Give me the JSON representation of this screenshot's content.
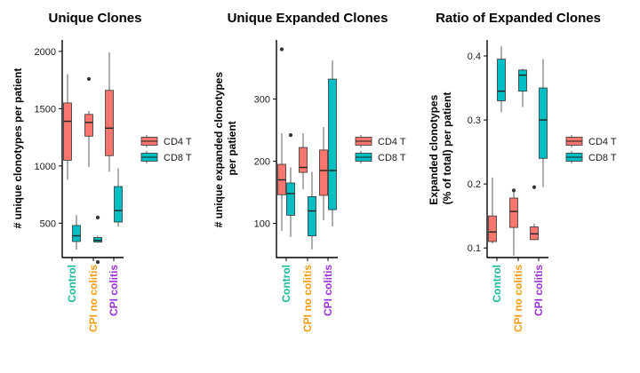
{
  "colors": {
    "cd4": "#F8766D",
    "cd8": "#00BFC4",
    "control": "#1ABC9C",
    "no_colitis": "#F39C12",
    "colitis": "#9B30D9"
  },
  "chart_data": [
    {
      "type": "boxplot",
      "title": "Unique Clones",
      "ylabel": "# unique clonotypes per patient",
      "ylim": [
        200,
        2100
      ],
      "yticks": [
        500,
        1000,
        1500,
        2000
      ],
      "categories": [
        "Control",
        "CPI no colitis",
        "CPI colitis"
      ],
      "legend": [
        "CD4 T",
        "CD8 T"
      ],
      "series": [
        {
          "name": "CD4 T",
          "boxes": [
            {
              "whislo": 880,
              "q1": 1050,
              "med": 1390,
              "q3": 1550,
              "whishi": 1800,
              "outliers": []
            },
            {
              "whislo": 990,
              "q1": 1260,
              "med": 1380,
              "q3": 1450,
              "whishi": 1480,
              "outliers": [
                1760
              ]
            },
            {
              "whislo": 950,
              "q1": 1090,
              "med": 1330,
              "q3": 1660,
              "whishi": 1990,
              "outliers": []
            }
          ]
        },
        {
          "name": "CD8 T",
          "boxes": [
            {
              "whislo": 270,
              "q1": 340,
              "med": 390,
              "q3": 480,
              "whishi": 570,
              "outliers": []
            },
            {
              "whislo": 330,
              "q1": 335,
              "med": 350,
              "q3": 375,
              "whishi": 390,
              "outliers": [
                550,
                160
              ]
            },
            {
              "whislo": 470,
              "q1": 510,
              "med": 610,
              "q3": 820,
              "whishi": 980,
              "outliers": []
            }
          ]
        }
      ]
    },
    {
      "type": "boxplot",
      "title": "Unique Expanded Clones",
      "ylabel": "# unique expanded clonotypes per patient",
      "ylabel_lines": [
        "# unique expanded clonotypes",
        "per patient"
      ],
      "ylim": [
        45,
        395
      ],
      "yticks": [
        100,
        200,
        300
      ],
      "categories": [
        "Control",
        "CPI no colitis",
        "CPI colitis"
      ],
      "legend": [
        "CD4 T",
        "CD8 T"
      ],
      "series": [
        {
          "name": "CD4 T",
          "boxes": [
            {
              "whislo": 88,
              "q1": 146,
              "med": 170,
              "q3": 195,
              "whishi": 245,
              "outliers": [
                380
              ]
            },
            {
              "whislo": 155,
              "q1": 182,
              "med": 190,
              "q3": 222,
              "whishi": 245,
              "outliers": []
            },
            {
              "whislo": 105,
              "q1": 145,
              "med": 185,
              "q3": 218,
              "whishi": 255,
              "outliers": []
            }
          ]
        },
        {
          "name": "CD8 T",
          "boxes": [
            {
              "whislo": 78,
              "q1": 113,
              "med": 148,
              "q3": 165,
              "whishi": 190,
              "outliers": [
                242
              ]
            },
            {
              "whislo": 58,
              "q1": 80,
              "med": 120,
              "q3": 143,
              "whishi": 183,
              "outliers": []
            },
            {
              "whislo": 95,
              "q1": 122,
              "med": 185,
              "q3": 332,
              "whishi": 362,
              "outliers": []
            }
          ]
        }
      ]
    },
    {
      "type": "boxplot",
      "title": "Ratio of Expanded Clones",
      "ylabel": "Expanded clonotypes (% of total) per patient",
      "ylabel_lines": [
        "Expanded clonotypes",
        "(% of total) per patient"
      ],
      "ylim": [
        0.085,
        0.425
      ],
      "yticks": [
        0.1,
        0.2,
        0.3,
        0.4
      ],
      "categories": [
        "Control",
        "CPI no colitis",
        "CPI colitis"
      ],
      "legend": [
        "CD4 T",
        "CD8 T"
      ],
      "series": [
        {
          "name": "CD4 T",
          "boxes": [
            {
              "whislo": 0.107,
              "q1": 0.11,
              "med": 0.125,
              "q3": 0.15,
              "whishi": 0.21,
              "outliers": []
            },
            {
              "whislo": 0.088,
              "q1": 0.132,
              "med": 0.157,
              "q3": 0.178,
              "whishi": 0.187,
              "outliers": [
                0.19
              ]
            },
            {
              "whislo": 0.112,
              "q1": 0.113,
              "med": 0.122,
              "q3": 0.133,
              "whishi": 0.138,
              "outliers": [
                0.195
              ]
            }
          ]
        },
        {
          "name": "CD8 T",
          "boxes": [
            {
              "whislo": 0.312,
              "q1": 0.33,
              "med": 0.345,
              "q3": 0.395,
              "whishi": 0.415,
              "outliers": []
            },
            {
              "whislo": 0.32,
              "q1": 0.345,
              "med": 0.37,
              "q3": 0.378,
              "whishi": 0.38,
              "outliers": []
            },
            {
              "whislo": 0.195,
              "q1": 0.24,
              "med": 0.3,
              "q3": 0.35,
              "whishi": 0.395,
              "outliers": []
            }
          ]
        }
      ]
    }
  ]
}
